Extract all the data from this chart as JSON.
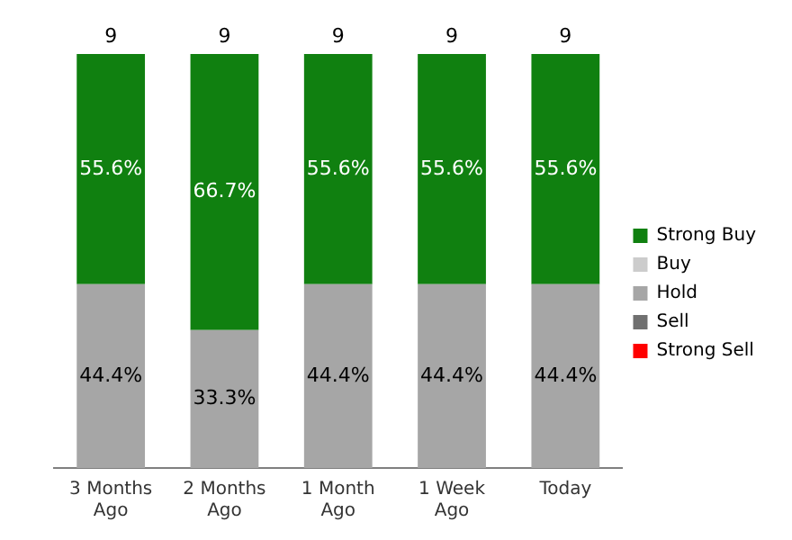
{
  "chart_data": {
    "type": "bar",
    "stacked": true,
    "categories": [
      "3 Months Ago",
      "2 Months Ago",
      "1 Month Ago",
      "1 Week Ago",
      "Today"
    ],
    "series": [
      {
        "name": "Strong Sell",
        "color": "#ff0000",
        "values": [
          0,
          0,
          0,
          0,
          0
        ],
        "value_labels": [
          null,
          null,
          null,
          null,
          null
        ]
      },
      {
        "name": "Sell",
        "color": "#707070",
        "values": [
          0,
          0,
          0,
          0,
          0
        ],
        "value_labels": [
          null,
          null,
          null,
          null,
          null
        ]
      },
      {
        "name": "Hold",
        "color": "#a6a6a6",
        "values": [
          44.4,
          33.3,
          44.4,
          44.4,
          44.4
        ],
        "value_labels": [
          "44.4%",
          "33.3%",
          "44.4%",
          "44.4%",
          "44.4%"
        ]
      },
      {
        "name": "Buy",
        "color": "#cccccc",
        "values": [
          0,
          0,
          0,
          0,
          0
        ],
        "value_labels": [
          null,
          null,
          null,
          null,
          null
        ]
      },
      {
        "name": "Strong Buy",
        "color": "#108010",
        "values": [
          55.6,
          66.7,
          55.6,
          55.6,
          55.6
        ],
        "value_labels": [
          "55.6%",
          "66.7%",
          "55.6%",
          "55.6%",
          "55.6%"
        ]
      }
    ],
    "annotations": [
      {
        "text": "9",
        "x": "3 Months Ago",
        "y": 100
      },
      {
        "text": "9",
        "x": "2 Months Ago",
        "y": 100
      },
      {
        "text": "9",
        "x": "1 Month Ago",
        "y": 100
      },
      {
        "text": "9",
        "x": "1 Week Ago",
        "y": 100
      },
      {
        "text": "9",
        "x": "Today",
        "y": 100
      }
    ],
    "ylim": [
      0,
      100
    ],
    "tick_labels": "x",
    "grid": false,
    "legend": "right"
  }
}
